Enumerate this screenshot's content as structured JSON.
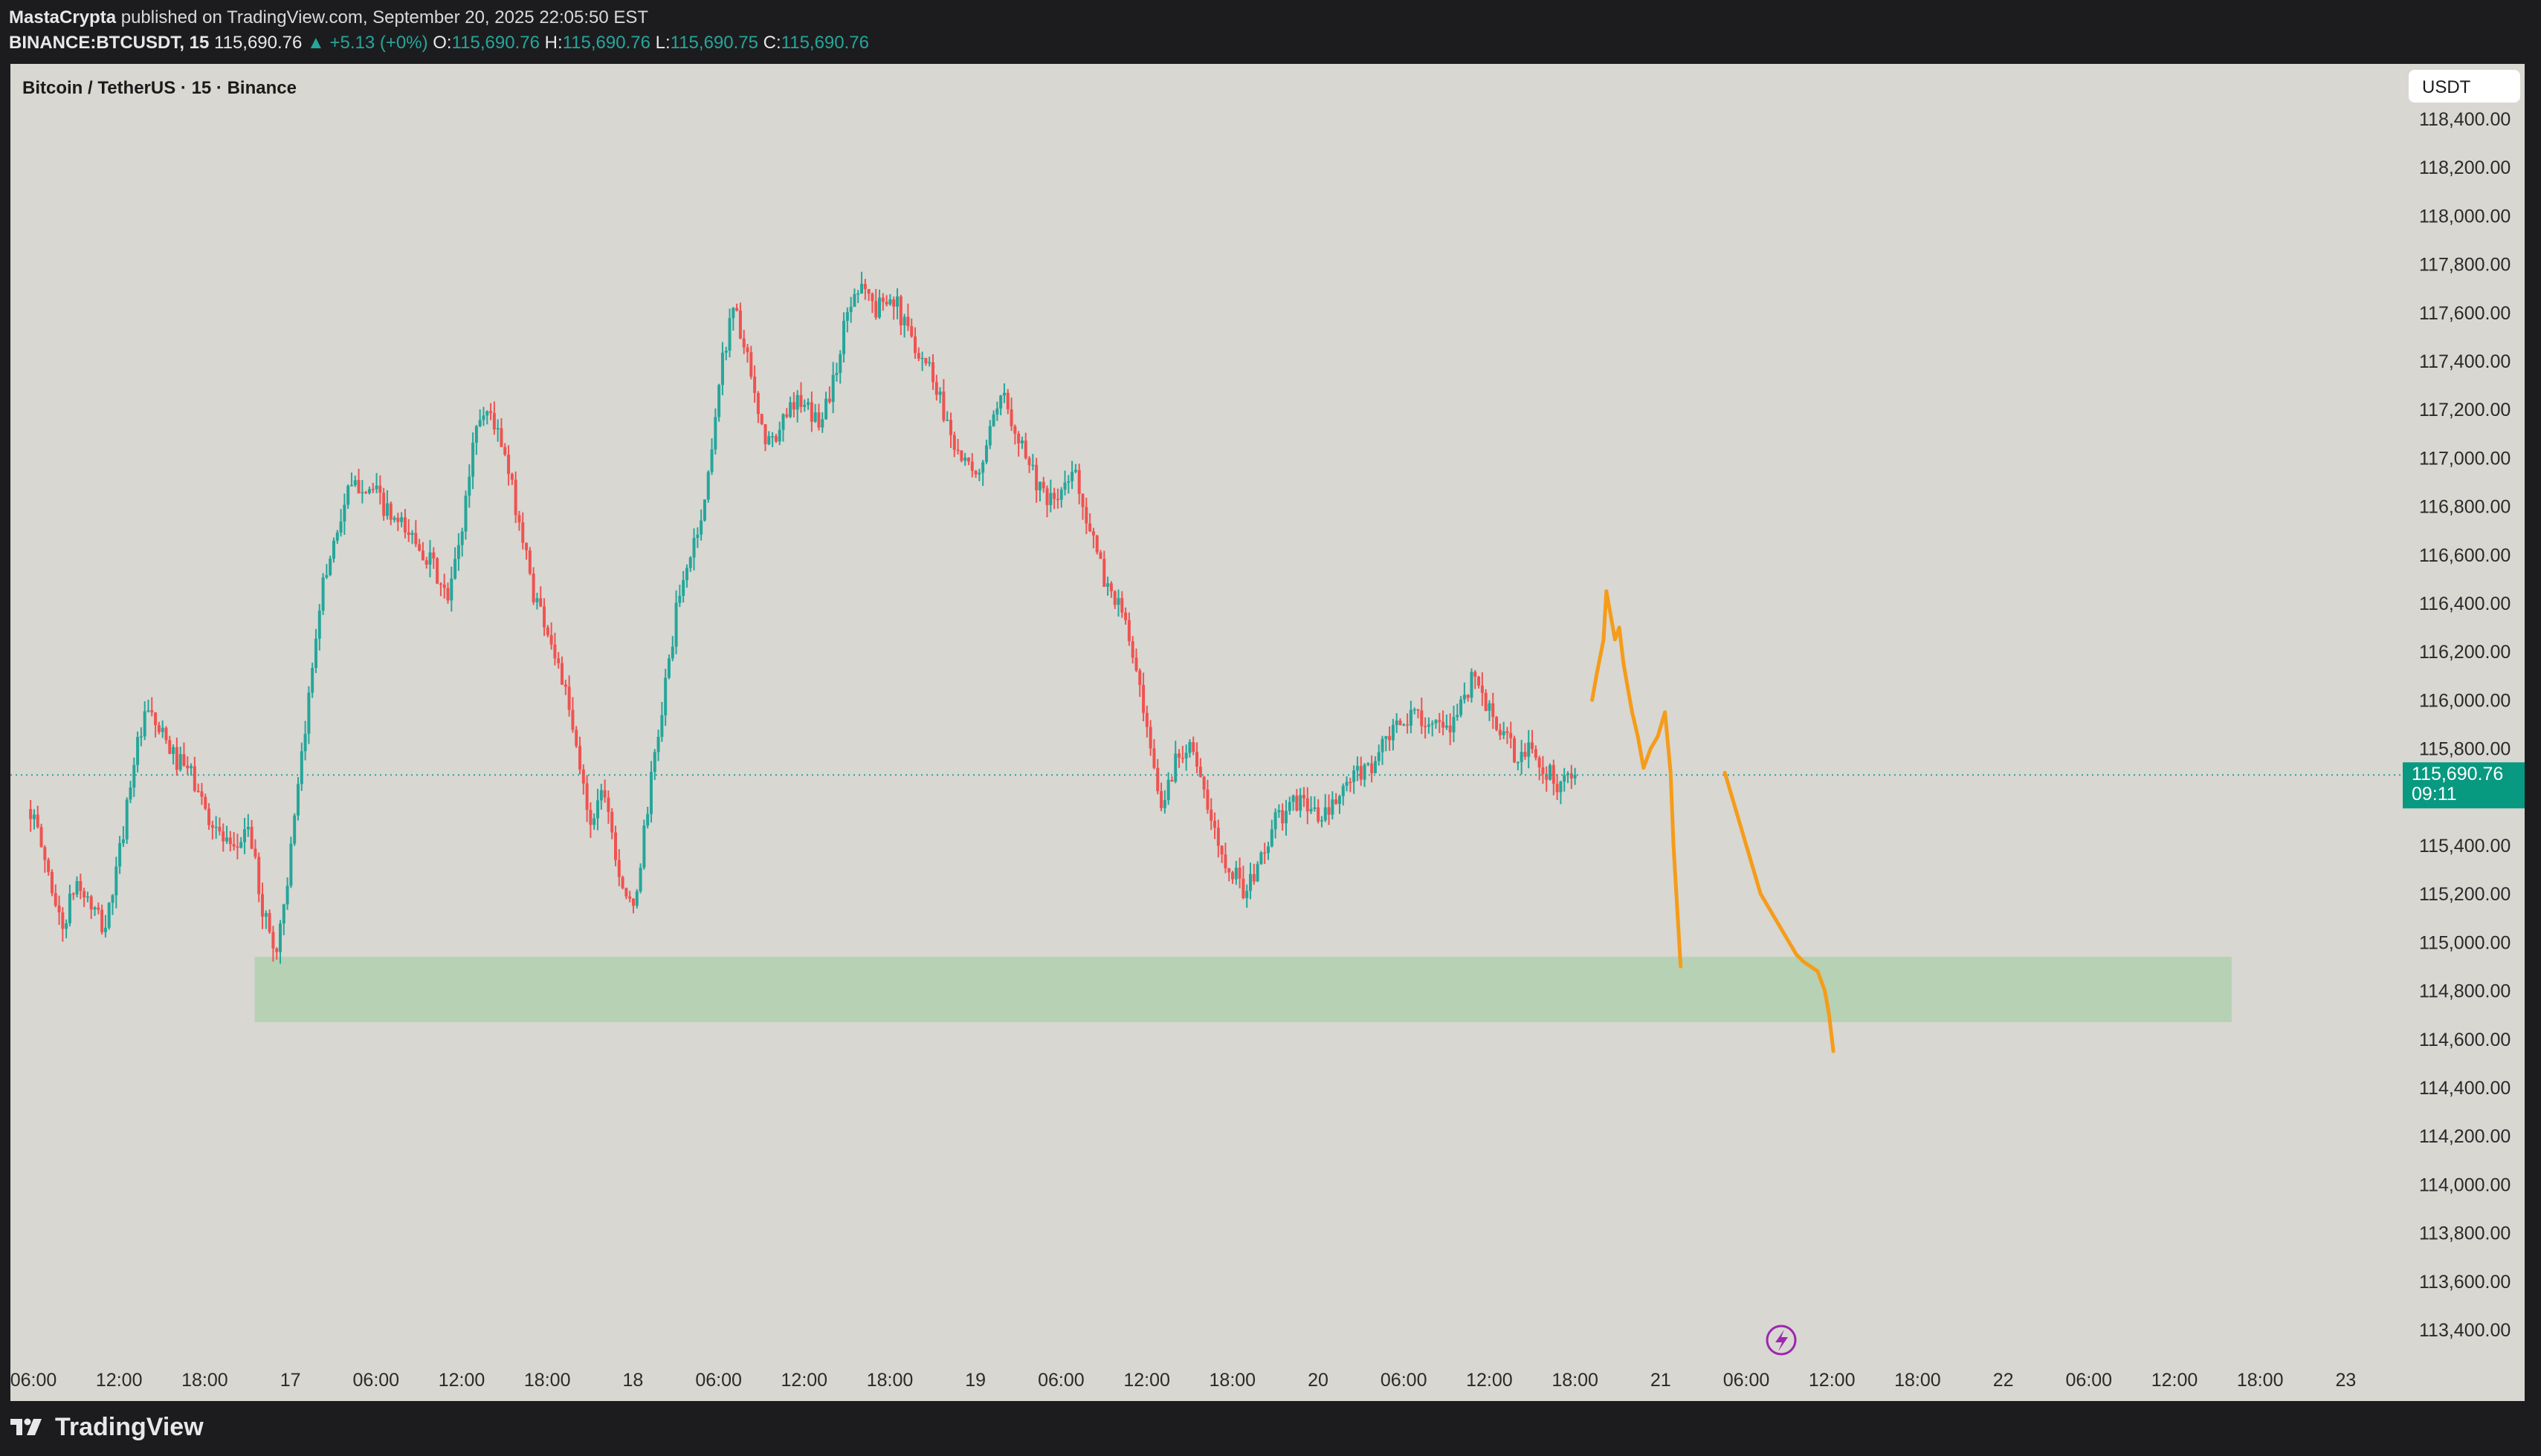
{
  "header": {
    "author": "MastaCrypta",
    "published_text": "published on TradingView.com, September 20, 2025 22:05:50 EST",
    "symbol": "BINANCE:BTCUSDT, 15",
    "last_price": "115,690.76",
    "change": "+5.13 (+0%)",
    "open_label": "O:",
    "open": "115,690.76",
    "high_label": "H:",
    "high": "115,690.76",
    "low_label": "L:",
    "low": "115,690.75",
    "close_label": "C:",
    "close": "115,690.76"
  },
  "footer": {
    "brand": "TradingView"
  },
  "chart_data": {
    "type": "candlestick",
    "title": "Bitcoin / TetherUS · 15 · Binance",
    "currency": "USDT",
    "ylim": [
      113300,
      118500
    ],
    "y_ticks": [
      113400,
      113600,
      113800,
      114000,
      114200,
      114400,
      114600,
      114800,
      115000,
      115200,
      115400,
      115600,
      115800,
      116000,
      116200,
      116400,
      116600,
      116800,
      117000,
      117200,
      117400,
      117600,
      117800,
      118000,
      118200,
      118400
    ],
    "y_tick_labels": [
      "113,400.00",
      "113,600.00",
      "113,800.00",
      "114,000.00",
      "114,200.00",
      "114,400.00",
      "114,600.00",
      "114,800.00",
      "115,000.00",
      "115,200.00",
      "115,400.00",
      "115,600.00",
      "115,800.00",
      "116,000.00",
      "116,200.00",
      "116,400.00",
      "116,600.00",
      "116,800.00",
      "117,000.00",
      "117,200.00",
      "117,400.00",
      "117,600.00",
      "117,800.00",
      "118,000.00",
      "118,200.00",
      "118,400.00"
    ],
    "x_unit": "hours since Sep 16 00:00",
    "xlim": [
      5.8,
      178.5
    ],
    "x_ticks": [
      {
        "t": 6,
        "label": "06:00"
      },
      {
        "t": 12,
        "label": "12:00"
      },
      {
        "t": 18,
        "label": "18:00"
      },
      {
        "t": 24,
        "label": "17"
      },
      {
        "t": 30,
        "label": "06:00"
      },
      {
        "t": 36,
        "label": "12:00"
      },
      {
        "t": 42,
        "label": "18:00"
      },
      {
        "t": 48,
        "label": "18"
      },
      {
        "t": 54,
        "label": "06:00"
      },
      {
        "t": 60,
        "label": "12:00"
      },
      {
        "t": 66,
        "label": "18:00"
      },
      {
        "t": 72,
        "label": "19"
      },
      {
        "t": 78,
        "label": "06:00"
      },
      {
        "t": 84,
        "label": "12:00"
      },
      {
        "t": 90,
        "label": "18:00"
      },
      {
        "t": 96,
        "label": "20"
      },
      {
        "t": 102,
        "label": "06:00"
      },
      {
        "t": 108,
        "label": "12:00"
      },
      {
        "t": 114,
        "label": "18:00"
      },
      {
        "t": 120,
        "label": "21"
      },
      {
        "t": 126,
        "label": "06:00"
      },
      {
        "t": 132,
        "label": "12:00"
      },
      {
        "t": 138,
        "label": "18:00"
      },
      {
        "t": 144,
        "label": "22"
      },
      {
        "t": 150,
        "label": "06:00"
      },
      {
        "t": 156,
        "label": "12:00"
      },
      {
        "t": 162,
        "label": "18:00"
      },
      {
        "t": 168,
        "label": "23"
      }
    ],
    "close_path": [
      [
        5.8,
        115550
      ],
      [
        7,
        115300
      ],
      [
        8,
        115050
      ],
      [
        9,
        115250
      ],
      [
        10,
        115150
      ],
      [
        11,
        115050
      ],
      [
        12,
        115350
      ],
      [
        13,
        115750
      ],
      [
        14,
        115950
      ],
      [
        15,
        115850
      ],
      [
        16,
        115750
      ],
      [
        17,
        115700
      ],
      [
        18,
        115550
      ],
      [
        19,
        115450
      ],
      [
        20,
        115350
      ],
      [
        21,
        115500
      ],
      [
        22,
        115150
      ],
      [
        23,
        114950
      ],
      [
        24,
        115350
      ],
      [
        25,
        115850
      ],
      [
        26,
        116400
      ],
      [
        27,
        116650
      ],
      [
        28,
        116850
      ],
      [
        29,
        116900
      ],
      [
        30,
        116850
      ],
      [
        31,
        116750
      ],
      [
        32,
        116700
      ],
      [
        33,
        116650
      ],
      [
        34,
        116550
      ],
      [
        35,
        116400
      ],
      [
        36,
        116700
      ],
      [
        37,
        117150
      ],
      [
        38,
        117200
      ],
      [
        39,
        117000
      ],
      [
        40,
        116750
      ],
      [
        41,
        116450
      ],
      [
        42,
        116300
      ],
      [
        43,
        116100
      ],
      [
        44,
        115800
      ],
      [
        45,
        115500
      ],
      [
        46,
        115650
      ],
      [
        47,
        115300
      ],
      [
        48,
        115100
      ],
      [
        49,
        115550
      ],
      [
        50,
        115950
      ],
      [
        51,
        116350
      ],
      [
        52,
        116600
      ],
      [
        53,
        116800
      ],
      [
        54,
        117300
      ],
      [
        55,
        117650
      ],
      [
        56,
        117400
      ],
      [
        57,
        117100
      ],
      [
        58,
        117050
      ],
      [
        59,
        117250
      ],
      [
        60,
        117200
      ],
      [
        61,
        117150
      ],
      [
        62,
        117300
      ],
      [
        63,
        117600
      ],
      [
        64,
        117750
      ],
      [
        65,
        117600
      ],
      [
        66,
        117700
      ],
      [
        67,
        117550
      ],
      [
        68,
        117450
      ],
      [
        69,
        117350
      ],
      [
        70,
        117150
      ],
      [
        71,
        117000
      ],
      [
        72,
        116900
      ],
      [
        73,
        117100
      ],
      [
        74,
        117250
      ],
      [
        75,
        117100
      ],
      [
        76,
        116950
      ],
      [
        77,
        116800
      ],
      [
        78,
        116850
      ],
      [
        79,
        116950
      ],
      [
        80,
        116700
      ],
      [
        81,
        116500
      ],
      [
        82,
        116400
      ],
      [
        83,
        116200
      ],
      [
        84,
        115850
      ],
      [
        85,
        115550
      ],
      [
        86,
        115750
      ],
      [
        87,
        115850
      ],
      [
        88,
        115600
      ],
      [
        89,
        115400
      ],
      [
        90,
        115300
      ],
      [
        91,
        115200
      ],
      [
        92,
        115350
      ],
      [
        93,
        115500
      ],
      [
        94,
        115550
      ],
      [
        95,
        115600
      ],
      [
        96,
        115500
      ],
      [
        97,
        115550
      ],
      [
        98,
        115650
      ],
      [
        99,
        115700
      ],
      [
        100,
        115750
      ],
      [
        101,
        115850
      ],
      [
        102,
        115900
      ],
      [
        103,
        115950
      ],
      [
        104,
        115900
      ],
      [
        105,
        115850
      ],
      [
        106,
        116000
      ],
      [
        107,
        116100
      ],
      [
        108,
        115950
      ],
      [
        109,
        115850
      ],
      [
        110,
        115750
      ],
      [
        111,
        115800
      ],
      [
        112,
        115700
      ],
      [
        113,
        115650
      ],
      [
        114,
        115690
      ]
    ],
    "candle_count": 434,
    "last_price": 115690.76,
    "last_price_label": "115,690.76",
    "countdown": "09:11",
    "support_zone": {
      "x0": 21.5,
      "x1": 160.0,
      "ymin": 114670,
      "ymax": 114940
    },
    "projection_path_1": [
      [
        115.2,
        116000
      ],
      [
        115.5,
        116100
      ],
      [
        116.0,
        116250
      ],
      [
        116.2,
        116450
      ],
      [
        116.5,
        116350
      ],
      [
        116.8,
        116250
      ],
      [
        117.1,
        116300
      ],
      [
        117.4,
        116150
      ],
      [
        117.7,
        116050
      ],
      [
        118.0,
        115950
      ],
      [
        118.4,
        115850
      ],
      [
        118.8,
        115720
      ],
      [
        119.3,
        115800
      ],
      [
        119.8,
        115850
      ],
      [
        120.3,
        115950
      ],
      [
        120.7,
        115700
      ],
      [
        120.9,
        115400
      ],
      [
        121.1,
        115200
      ],
      [
        121.3,
        115000
      ],
      [
        121.4,
        114900
      ]
    ],
    "projection_path_2": [
      [
        124.5,
        115700
      ],
      [
        125.0,
        115600
      ],
      [
        125.5,
        115500
      ],
      [
        126.0,
        115400
      ],
      [
        126.5,
        115300
      ],
      [
        127.0,
        115200
      ],
      [
        127.5,
        115150
      ],
      [
        128.0,
        115100
      ],
      [
        128.5,
        115050
      ],
      [
        129.0,
        115000
      ],
      [
        129.5,
        114950
      ],
      [
        130.0,
        114920
      ],
      [
        130.5,
        114900
      ],
      [
        131.0,
        114880
      ],
      [
        131.5,
        114800
      ],
      [
        131.8,
        114700
      ],
      [
        132.0,
        114600
      ],
      [
        132.1,
        114550
      ]
    ]
  }
}
